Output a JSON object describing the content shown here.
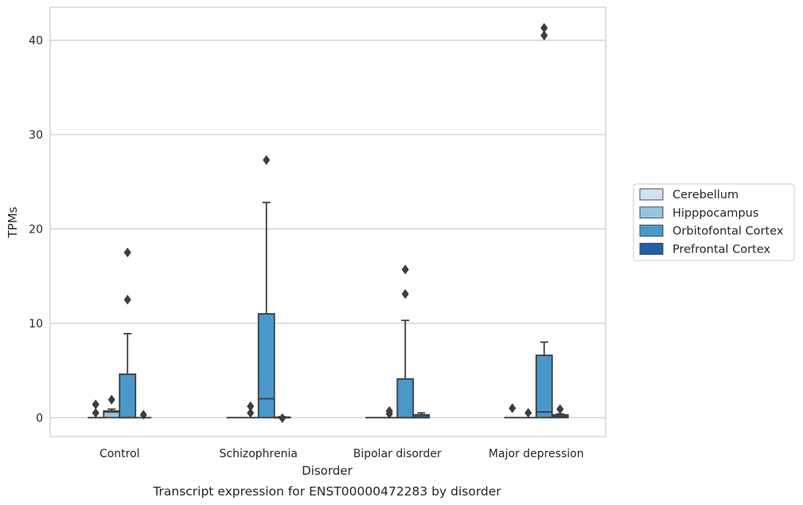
{
  "chart_data": {
    "type": "box",
    "caption": "Transcript expression for ENST00000472283 by disorder",
    "xlabel": "Disorder",
    "ylabel": "TPMs",
    "ylim": [
      -2,
      43.5
    ],
    "yticks": [
      0,
      10,
      20,
      30,
      40
    ],
    "grid": "horizontal",
    "legend_position": "right",
    "categories": [
      "Control",
      "Schizophrenia",
      "Bipolar disorder",
      "Major depression"
    ],
    "series": [
      {
        "name": "Cerebellum",
        "color": "#d0e1f2",
        "boxes": [
          {
            "category": "Control",
            "q1": 0,
            "median": 0,
            "q3": 0,
            "whisker_low": 0,
            "whisker_high": 0,
            "outliers": [
              0.5,
              1.4
            ]
          },
          {
            "category": "Schizophrenia",
            "q1": 0,
            "median": 0,
            "q3": 0,
            "whisker_low": 0,
            "whisker_high": 0,
            "outliers": []
          },
          {
            "category": "Bipolar disorder",
            "q1": 0,
            "median": 0,
            "q3": 0,
            "whisker_low": 0,
            "whisker_high": 0,
            "outliers": []
          },
          {
            "category": "Major depression",
            "q1": 0,
            "median": 0,
            "q3": 0,
            "whisker_low": 0,
            "whisker_high": 0,
            "outliers": [
              1.0
            ]
          }
        ]
      },
      {
        "name": "Hipppocampus",
        "color": "#94c4df",
        "boxes": [
          {
            "category": "Control",
            "q1": 0,
            "median": 0.6,
            "q3": 0.7,
            "whisker_low": 0,
            "whisker_high": 0.9,
            "outliers": [
              1.9
            ]
          },
          {
            "category": "Schizophrenia",
            "q1": 0,
            "median": 0,
            "q3": 0,
            "whisker_low": 0,
            "whisker_high": 0,
            "outliers": [
              0.5,
              1.2
            ]
          },
          {
            "category": "Bipolar disorder",
            "q1": 0,
            "median": 0,
            "q3": 0,
            "whisker_low": 0,
            "whisker_high": 0,
            "outliers": [
              0.4,
              0.7
            ]
          },
          {
            "category": "Major depression",
            "q1": 0,
            "median": 0,
            "q3": 0,
            "whisker_low": 0,
            "whisker_high": 0,
            "outliers": [
              0.5
            ]
          }
        ]
      },
      {
        "name": "Orbitofontal Cortex",
        "color": "#4a98c9",
        "boxes": [
          {
            "category": "Control",
            "q1": 0,
            "median": 0,
            "q3": 4.6,
            "whisker_low": 0,
            "whisker_high": 8.9,
            "outliers": [
              12.5,
              17.5
            ]
          },
          {
            "category": "Schizophrenia",
            "q1": 0,
            "median": 2.0,
            "q3": 11.0,
            "whisker_low": 0,
            "whisker_high": 22.8,
            "outliers": [
              27.3
            ]
          },
          {
            "category": "Bipolar disorder",
            "q1": 0,
            "median": 0,
            "q3": 4.1,
            "whisker_low": 0,
            "whisker_high": 10.3,
            "outliers": [
              13.1,
              15.7
            ]
          },
          {
            "category": "Major depression",
            "q1": 0,
            "median": 0.6,
            "q3": 6.6,
            "whisker_low": 0,
            "whisker_high": 8.0,
            "outliers": [
              40.5,
              41.3
            ]
          }
        ]
      },
      {
        "name": "Prefrontal Cortex",
        "color": "#2060a8",
        "boxes": [
          {
            "category": "Control",
            "q1": 0,
            "median": 0,
            "q3": 0,
            "whisker_low": 0,
            "whisker_high": 0,
            "outliers": [
              0.3
            ]
          },
          {
            "category": "Schizophrenia",
            "q1": 0,
            "median": 0,
            "q3": 0.05,
            "whisker_low": 0,
            "whisker_high": 0.1,
            "outliers": [
              -0.05
            ]
          },
          {
            "category": "Bipolar disorder",
            "q1": 0,
            "median": 0,
            "q3": 0.3,
            "whisker_low": 0,
            "whisker_high": 0.5,
            "outliers": []
          },
          {
            "category": "Major depression",
            "q1": 0,
            "median": 0.1,
            "q3": 0.3,
            "whisker_low": 0,
            "whisker_high": 0.4,
            "outliers": [
              0.9
            ]
          }
        ]
      }
    ]
  }
}
